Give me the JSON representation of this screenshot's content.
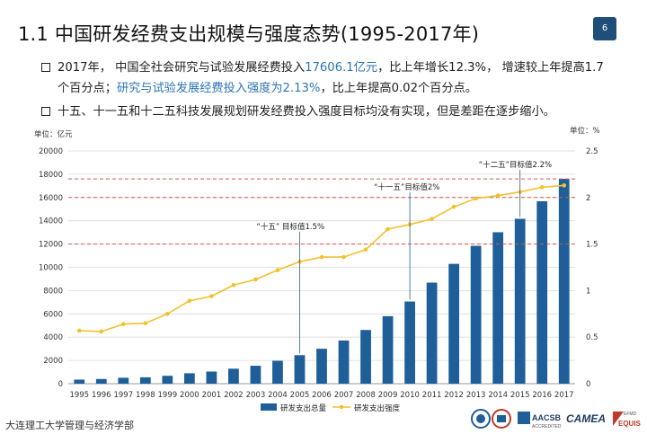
{
  "slide": {
    "title": "1.1  中国研发经费支出规模与强度态势(1995-2017年)",
    "page_number": "6"
  },
  "bullets": [
    {
      "parts": [
        {
          "text": "2017年，  中国全社会研究与试验发展经费投入",
          "highlight": false
        },
        {
          "text": "17606.1亿元",
          "highlight": true
        },
        {
          "text": "，比上年增长12.3%，  增速较上年提高1.7个百分点；",
          "highlight": false
        },
        {
          "text": "研究与试验发展经费投入强度为2.13%",
          "highlight": true
        },
        {
          "text": "，比上年提高0.02个百分点。",
          "highlight": false
        }
      ]
    },
    {
      "parts": [
        {
          "text": "十五、十一五和十二五科技发展规划研发经费投入强度目标均没有实现，但是差距在逐步缩小。",
          "highlight": false
        }
      ]
    }
  ],
  "chart_data": {
    "type": "bar+line",
    "left_axis_unit": "单位：亿元",
    "right_axis_unit": "单位：%",
    "categories": [
      "1995",
      "1996",
      "1997",
      "1998",
      "1999",
      "2000",
      "2001",
      "2002",
      "2003",
      "2004",
      "2005",
      "2006",
      "2007",
      "2008",
      "2009",
      "2010",
      "2011",
      "2012",
      "2013",
      "2014",
      "2015",
      "2016",
      "2017"
    ],
    "series": [
      {
        "name": "研发支出总量",
        "kind": "bar",
        "axis": "left",
        "values": [
          349,
          404,
          509,
          551,
          679,
          896,
          1043,
          1288,
          1540,
          1966,
          2450,
          3003,
          3710,
          4616,
          5802,
          7063,
          8687,
          10298,
          11847,
          13016,
          14170,
          15677,
          17606.1
        ]
      },
      {
        "name": "研发支出强度",
        "kind": "line",
        "axis": "right",
        "values": [
          0.57,
          0.56,
          0.64,
          0.65,
          0.75,
          0.89,
          0.94,
          1.06,
          1.12,
          1.22,
          1.31,
          1.36,
          1.36,
          1.44,
          1.66,
          1.71,
          1.77,
          1.9,
          1.99,
          2.02,
          2.06,
          2.11,
          2.13
        ]
      }
    ],
    "left_ylim": [
      0,
      20000
    ],
    "left_ticks": [
      0,
      2000,
      4000,
      6000,
      8000,
      10000,
      12000,
      14000,
      16000,
      18000,
      20000
    ],
    "right_ylim": [
      0,
      2.5
    ],
    "right_ticks": [
      "0",
      "0.5",
      "1",
      "1.5",
      "2",
      "2.5"
    ],
    "targets": [
      {
        "label": "“十五”  目标值1.5%",
        "value": 1.5,
        "year": "2005"
      },
      {
        "label": "“十一五”目标值2%",
        "value": 2.0,
        "year": "2010"
      },
      {
        "label": "“十二五”目标值2.2%",
        "value": 2.2,
        "year": "2015"
      }
    ],
    "colors": {
      "bar": "#1f5f99",
      "line": "#f2c12e",
      "target_line": "#d9534f"
    },
    "grid": true,
    "legend_position": "bottom"
  },
  "footer": {
    "org": "大连理工大学管理与经济学部",
    "logos": [
      {
        "icon": "seal-logo"
      },
      {
        "icon": "building-logo"
      },
      {
        "icon": "aacsb-logo",
        "label": "AACSB",
        "sub": "ACCREDITED"
      },
      {
        "icon": "camea-logo",
        "label": "CAMEA"
      },
      {
        "icon": "equis-logo",
        "label": "EQUIS",
        "sub": "EFMD"
      }
    ]
  }
}
